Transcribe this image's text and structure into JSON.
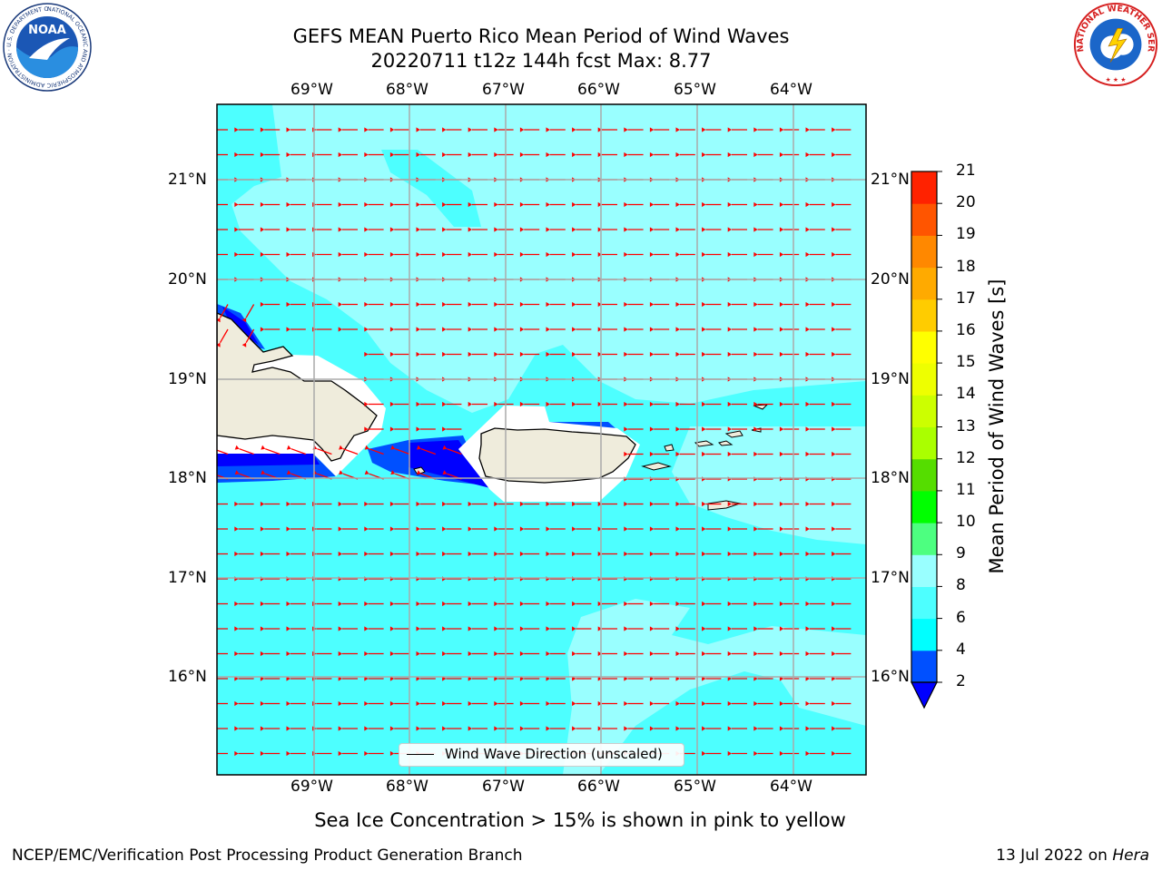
{
  "title": {
    "line1": "GEFS MEAN Puerto Rico Mean Period of Wind Waves",
    "line2": "20220711 t12z 144h fcst   Max: 8.77"
  },
  "logos": {
    "left": "noaa-logo",
    "right": "national-weather-service-logo",
    "left_text": "NOAA",
    "left_ring_text": "NATIONAL OCEANIC AND ATMOSPHERIC ADMINISTRATION · U.S. DEPARTMENT OF COMMERCE",
    "right_ring_text": "NATIONAL WEATHER SERVICE"
  },
  "map": {
    "longitude_labels": [
      "69°W",
      "68°W",
      "67°W",
      "66°W",
      "65°W",
      "64°W"
    ],
    "latitude_labels": [
      "16°N",
      "17°N",
      "18°N",
      "19°N",
      "20°N",
      "21°N"
    ],
    "ocean_color": "#99ffff",
    "land_color": "#efecdc",
    "arrow_color": "#ff0000",
    "legend_text": "Wind Wave Direction (unscaled)"
  },
  "colorbar": {
    "title": "Mean Period of Wind Waves [s]",
    "ticks": [
      "2",
      "4",
      "6",
      "8",
      "9",
      "10",
      "11",
      "12",
      "13",
      "14",
      "15",
      "16",
      "17",
      "18",
      "19",
      "20",
      "21"
    ],
    "colors": [
      "#0050ff",
      "#00ffff",
      "#4dffff",
      "#99ffff",
      "#4dff80",
      "#00ff00",
      "#55dd00",
      "#aaff00",
      "#ccff00",
      "#eeff00",
      "#ffff00",
      "#ffcc00",
      "#ffaa00",
      "#ff8800",
      "#ff5500",
      "#ff2200"
    ],
    "under_color": "#0000ff",
    "top_color": "#ff0000"
  },
  "sea_ice_note": "Sea Ice Concentration > 15% is shown in pink to yellow",
  "footer": {
    "left": "NCEP/EMC/Verification Post Processing Product Generation Branch",
    "right_date": "13 Jul 2022 on ",
    "right_host": "Hera"
  }
}
